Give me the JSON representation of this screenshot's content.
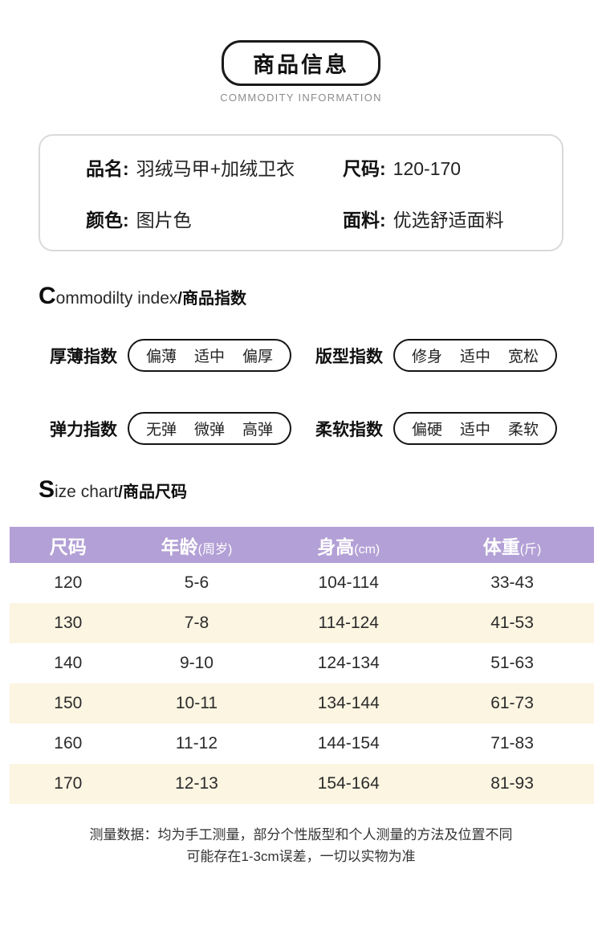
{
  "header": {
    "title": "商品信息",
    "subtitle": "COMMODITY INFORMATION"
  },
  "product_info": {
    "items": [
      {
        "label": "品名:",
        "value": "羽绒马甲+加绒卫衣"
      },
      {
        "label": "尺码:",
        "value": "120-170"
      },
      {
        "label": "颜色:",
        "value": "图片色"
      },
      {
        "label": "面料:",
        "value": "优选舒适面料"
      }
    ]
  },
  "index_section": {
    "heading": {
      "initial": "C",
      "rest": "ommodilty index",
      "slash_cn": "/商品指数"
    },
    "colors": {
      "marker": "#ffd800"
    },
    "items": [
      {
        "label": "厚薄指数",
        "options": [
          "偏薄",
          "适中",
          "偏厚"
        ],
        "selected": 2
      },
      {
        "label": "版型指数",
        "options": [
          "修身",
          "适中",
          "宽松"
        ],
        "selected": 2
      },
      {
        "label": "弹力指数",
        "options": [
          "无弹",
          "微弹",
          "高弹"
        ],
        "selected": 1
      },
      {
        "label": "柔软指数",
        "options": [
          "偏硬",
          "适中",
          "柔软"
        ],
        "selected": 2
      }
    ]
  },
  "size_section": {
    "heading": {
      "initial": "S",
      "rest": "ize chart",
      "slash_cn": "/商品尺码"
    },
    "colors": {
      "header_bg": "#b3a0d6",
      "alt_row_bg": "#fcf5e2",
      "header_text": "#ffffff"
    },
    "table": {
      "columns": [
        {
          "main": "尺码",
          "sub": ""
        },
        {
          "main": "年龄",
          "sub": "(周岁)"
        },
        {
          "main": "身高",
          "sub": "(cm)"
        },
        {
          "main": "体重",
          "sub": "(斤)"
        }
      ],
      "rows": [
        [
          "120",
          "5-6",
          "104-114",
          "33-43"
        ],
        [
          "130",
          "7-8",
          "114-124",
          "41-53"
        ],
        [
          "140",
          "9-10",
          "124-134",
          "51-63"
        ],
        [
          "150",
          "10-11",
          "134-144",
          "61-73"
        ],
        [
          "160",
          "11-12",
          "144-154",
          "71-83"
        ],
        [
          "170",
          "12-13",
          "154-164",
          "81-93"
        ]
      ]
    }
  },
  "footer": {
    "line1": "测量数据：均为手工测量，部分个性版型和个人测量的方法及位置不同",
    "line2": "可能存在1-3cm误差，一切以实物为准"
  }
}
